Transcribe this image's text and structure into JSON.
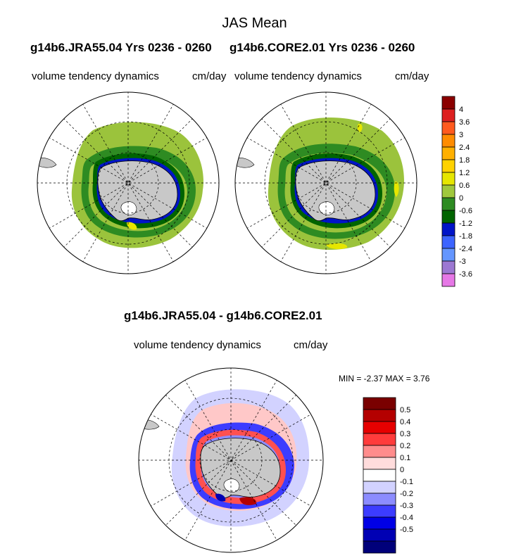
{
  "main_title": "JAS Mean",
  "panel_left": {
    "header_left": "g14b6.JRA55.04  Yrs 0236 - 0260",
    "subtitle": "volume tendency dynamics",
    "units": "cm/day"
  },
  "panel_right": {
    "header_right": "g14b6.CORE2.01  Yrs 0236 - 0260",
    "subtitle": "volume tendency dynamics",
    "units": "cm/day"
  },
  "panel_diff": {
    "header": "g14b6.JRA55.04 - g14b6.CORE2.01",
    "subtitle": "volume tendency dynamics",
    "units": "cm/day",
    "minmax": "MIN =  -2.37 MAX =   3.76"
  },
  "colorbar_top": {
    "colors": [
      "#8b0000",
      "#dd2020",
      "#ff5a1e",
      "#ff8c00",
      "#ffb000",
      "#ffd200",
      "#e6e600",
      "#a0c83c",
      "#2e8b22",
      "#006400",
      "#0014c8",
      "#3c64ff",
      "#6496ff",
      "#9c78d2",
      "#e678e6"
    ],
    "labels": [
      "4",
      "3.6",
      "3",
      "2.4",
      "1.8",
      "1.2",
      "0.6",
      "0",
      "-0.6",
      "-1.2",
      "-1.8",
      "-2.4",
      "-3",
      "-3.6"
    ]
  },
  "colorbar_diff": {
    "colors": [
      "#7a0000",
      "#b40000",
      "#e60000",
      "#ff3c3c",
      "#ff8c8c",
      "#ffdcdc",
      "#ffffff",
      "#d2d2ff",
      "#8c8cff",
      "#3c3cff",
      "#0000e6",
      "#0000b4",
      "#00007a"
    ],
    "labels": [
      "0.5",
      "0.4",
      "0.3",
      "0.2",
      "0.1",
      "0",
      "-0.1",
      "-0.2",
      "-0.3",
      "-0.4",
      "-0.5"
    ]
  },
  "colors": {
    "land": "#c8c8c8",
    "ice_green_light": "#9bc33c",
    "ice_green_dark": "#2e8b22",
    "ice_green_darker": "#006400",
    "ice_blue": "#0014c8",
    "ice_yellow": "#e6e600",
    "diff_light_blue": "#c8c8ff",
    "diff_blue": "#3c3cff",
    "diff_red": "#ff5050",
    "diff_pink": "#ffc8c8"
  }
}
